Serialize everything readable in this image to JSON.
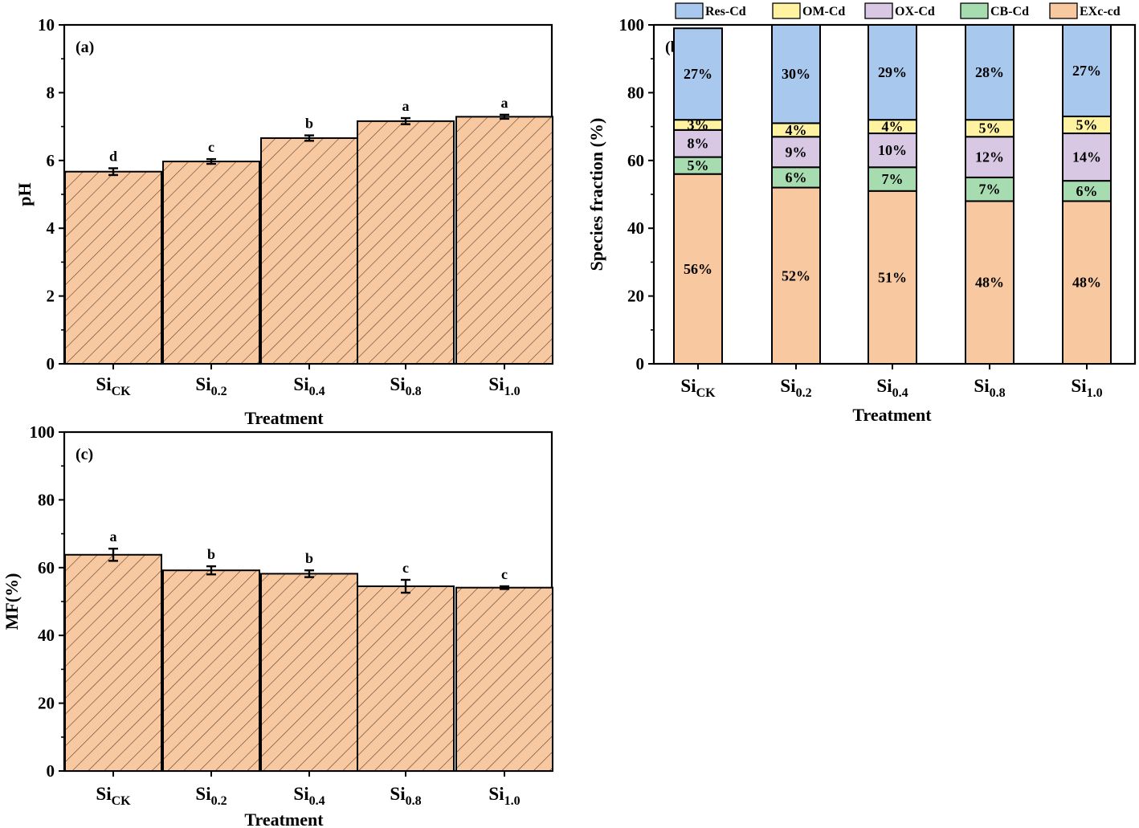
{
  "figure_description": "",
  "chart_data": [
    {
      "panel": "(a)",
      "type": "bar",
      "categories": [
        {
          "base": "Si",
          "sub": "CK"
        },
        {
          "base": "Si",
          "sub": "0.2"
        },
        {
          "base": "Si",
          "sub": "0.4"
        },
        {
          "base": "Si",
          "sub": "0.8"
        },
        {
          "base": "Si",
          "sub": "1.0"
        }
      ],
      "values": [
        5.67,
        5.97,
        6.66,
        7.16,
        7.29
      ],
      "errors": [
        0.1,
        0.07,
        0.08,
        0.09,
        0.06
      ],
      "significance": [
        "d",
        "c",
        "b",
        "a",
        "a"
      ],
      "xlabel": "Treatment",
      "ylabel": "pH",
      "ylim": [
        0,
        10
      ],
      "yticks": [
        "0",
        "2",
        "4",
        "6",
        "8",
        "10"
      ],
      "bar_fill": "#f8c8a0",
      "hatch": "diagonal",
      "grid": false
    },
    {
      "panel": "(b)",
      "type": "bar",
      "stacked": true,
      "categories": [
        {
          "base": "Si",
          "sub": "CK"
        },
        {
          "base": "Si",
          "sub": "0.2"
        },
        {
          "base": "Si",
          "sub": "0.4"
        },
        {
          "base": "Si",
          "sub": "0.8"
        },
        {
          "base": "Si",
          "sub": "1.0"
        }
      ],
      "series": [
        {
          "name": "EXc-cd",
          "color": "#f8c8a0",
          "values": [
            56,
            52,
            51,
            48,
            48
          ],
          "labels": [
            "56%",
            "52%",
            "51%",
            "48%",
            "48%"
          ]
        },
        {
          "name": "CB-Cd",
          "color": "#a6dcb0",
          "values": [
            5,
            6,
            7,
            7,
            6
          ],
          "labels": [
            "5%",
            "6%",
            "7%",
            "7%",
            "6%"
          ]
        },
        {
          "name": "OX-Cd",
          "color": "#d8c8e4",
          "values": [
            8,
            9,
            10,
            12,
            14
          ],
          "labels": [
            "8%",
            "9%",
            "10%",
            "12%",
            "14%"
          ]
        },
        {
          "name": "OM-Cd",
          "color": "#fff2a0",
          "values": [
            3,
            4,
            4,
            5,
            5
          ],
          "labels": [
            "3%",
            "4%",
            "4%",
            "5%",
            "5%"
          ]
        },
        {
          "name": "Res-Cd",
          "color": "#a9c8ee",
          "values": [
            27,
            30,
            29,
            28,
            27
          ],
          "labels": [
            "27%",
            "30%",
            "29%",
            "28%",
            "27%"
          ]
        }
      ],
      "legend_order": [
        "Res-Cd",
        "OM-Cd",
        "OX-Cd",
        "CB-Cd",
        "EXc-cd"
      ],
      "legend_position": "top",
      "xlabel": "Treatment",
      "ylabel": "Species fraction (%)",
      "ylim": [
        0,
        100
      ],
      "yticks": [
        "0",
        "20",
        "40",
        "60",
        "80",
        "100"
      ],
      "grid": false
    },
    {
      "panel": "(c)",
      "type": "bar",
      "categories": [
        {
          "base": "Si",
          "sub": "CK"
        },
        {
          "base": "Si",
          "sub": "0.2"
        },
        {
          "base": "Si",
          "sub": "0.4"
        },
        {
          "base": "Si",
          "sub": "0.8"
        },
        {
          "base": "Si",
          "sub": "1.0"
        }
      ],
      "values": [
        63.8,
        59.2,
        58.2,
        54.5,
        54.1
      ],
      "errors": [
        1.8,
        1.2,
        1.0,
        1.9,
        0.4
      ],
      "significance": [
        "a",
        "b",
        "b",
        "c",
        "c"
      ],
      "xlabel": "Treatment",
      "ylabel": "MF(%)",
      "ylim": [
        0,
        100
      ],
      "yticks": [
        "0",
        "20",
        "40",
        "60",
        "80",
        "100"
      ],
      "bar_fill": "#f8c8a0",
      "hatch": "diagonal",
      "grid": false
    }
  ]
}
